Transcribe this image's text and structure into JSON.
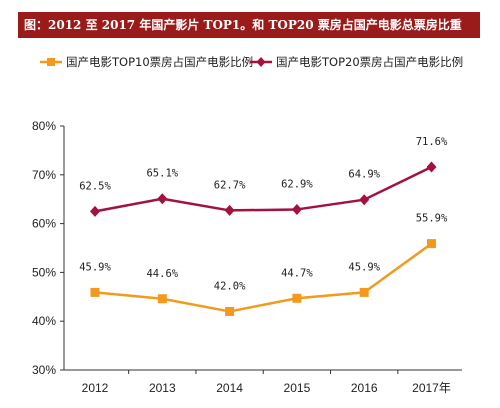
{
  "header": {
    "title": "图：2012 至 2017 年国产影片 TOP1。和 TOP20 票房占国产电影总票房比重"
  },
  "colors": {
    "title_bg": "#9b1b1b",
    "series_top10": "#f39a1e",
    "series_top20": "#a3123f"
  },
  "chart_data": {
    "type": "line",
    "title": "",
    "xlabel": "",
    "ylabel": "",
    "categories": [
      "2012",
      "2013",
      "2014",
      "2015",
      "2016",
      "2017年"
    ],
    "ylim": [
      30,
      80
    ],
    "yticks": [
      "30%",
      "40%",
      "50%",
      "60%",
      "70%",
      "80%"
    ],
    "grid": false,
    "legend_position": "top",
    "series": [
      {
        "name": "国产电影TOP10票房占国产电影比例",
        "marker": "square",
        "values": [
          45.9,
          44.6,
          42.0,
          44.7,
          45.9,
          55.9
        ],
        "labels": [
          "45.9%",
          "44.6%",
          "42.0%",
          "44.7%",
          "45.9%",
          "55.9%"
        ]
      },
      {
        "name": "国产电影TOP20票房占国产电影比例",
        "marker": "diamond",
        "values": [
          62.5,
          65.1,
          62.7,
          62.9,
          64.9,
          71.6
        ],
        "labels": [
          "62.5%",
          "65.1%",
          "62.7%",
          "62.9%",
          "64.9%",
          "71.6%"
        ]
      }
    ]
  }
}
